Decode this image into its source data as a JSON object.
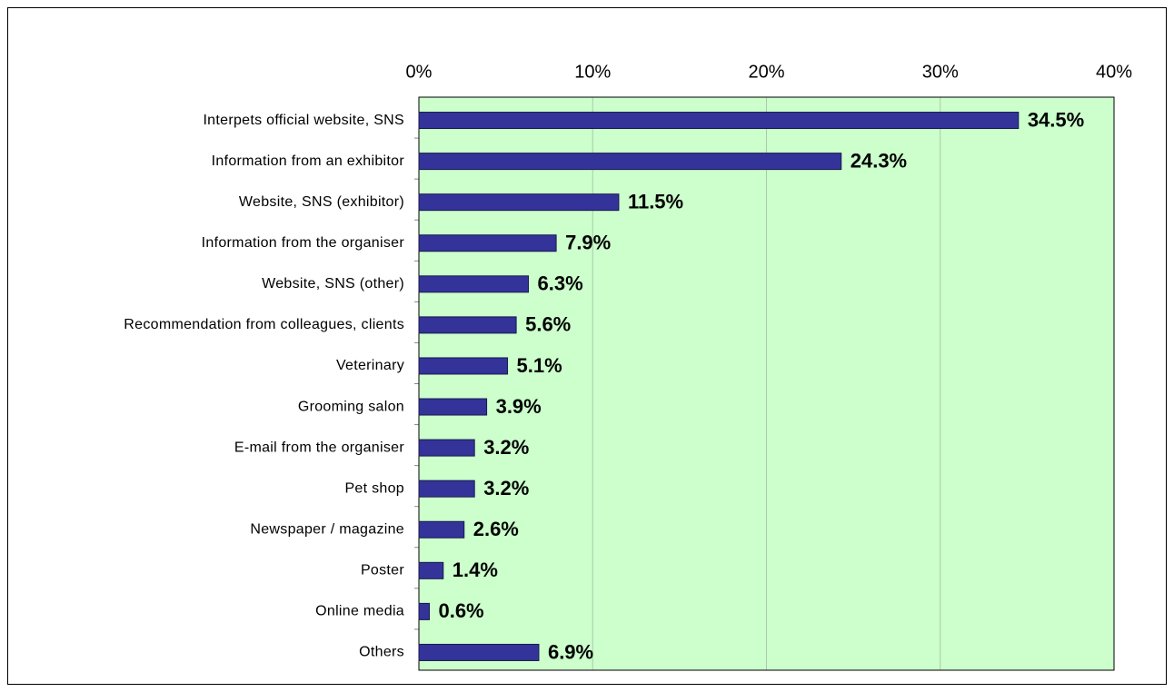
{
  "chart_data": {
    "type": "bar",
    "orientation": "horizontal",
    "categories": [
      "Interpets official website, SNS",
      "Information from an exhibitor",
      "Website, SNS (exhibitor)",
      "Information from the organiser",
      "Website, SNS (other)",
      "Recommendation from colleagues, clients",
      "Veterinary",
      "Grooming salon",
      "E-mail from the organiser",
      "Pet shop",
      "Newspaper / magazine",
      "Poster",
      "Online media",
      "Others"
    ],
    "values": [
      34.5,
      24.3,
      11.5,
      7.9,
      6.3,
      5.6,
      5.1,
      3.9,
      3.2,
      3.2,
      2.6,
      1.4,
      0.6,
      6.9
    ],
    "value_labels": [
      "34.5%",
      "24.3%",
      "11.5%",
      "7.9%",
      "6.3%",
      "5.6%",
      "5.1%",
      "3.9%",
      "3.2%",
      "3.2%",
      "2.6%",
      "1.4%",
      "0.6%",
      "6.9%"
    ],
    "color": "#333399",
    "xlim": [
      0,
      40
    ],
    "xticks": [
      {
        "value": 0,
        "label": "0%"
      },
      {
        "value": 10,
        "label": "10%"
      },
      {
        "value": 20,
        "label": "20%"
      },
      {
        "value": 30,
        "label": "30%"
      },
      {
        "value": 40,
        "label": "40%"
      }
    ],
    "grid": true
  }
}
